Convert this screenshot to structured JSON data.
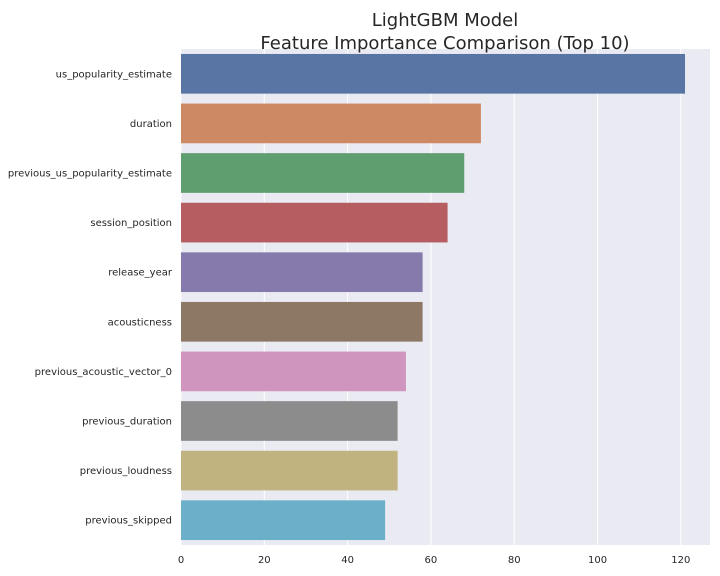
{
  "chart_data": {
    "type": "bar",
    "orientation": "horizontal",
    "title_lines": [
      "LightGBM Model",
      "Feature Importance Comparison (Top 10)"
    ],
    "xlabel": "",
    "ylabel": "",
    "categories": [
      "us_popularity_estimate",
      "duration",
      "previous_us_popularity_estimate",
      "session_position",
      "release_year",
      "acousticness",
      "previous_acoustic_vector_0",
      "previous_duration",
      "previous_loudness",
      "previous_skipped"
    ],
    "values": [
      121,
      72,
      68,
      64,
      58,
      58,
      54,
      52,
      52,
      49
    ],
    "colors": [
      "#5975a4",
      "#cc8963",
      "#5f9e6e",
      "#b55d60",
      "#857aab",
      "#8d7866",
      "#d095bf",
      "#8c8c8c",
      "#c1b37f",
      "#6cafc9"
    ],
    "xlim": [
      0,
      127
    ],
    "xticks": [
      0,
      20,
      40,
      60,
      80,
      100,
      120
    ],
    "grid": true,
    "legend": "none"
  }
}
